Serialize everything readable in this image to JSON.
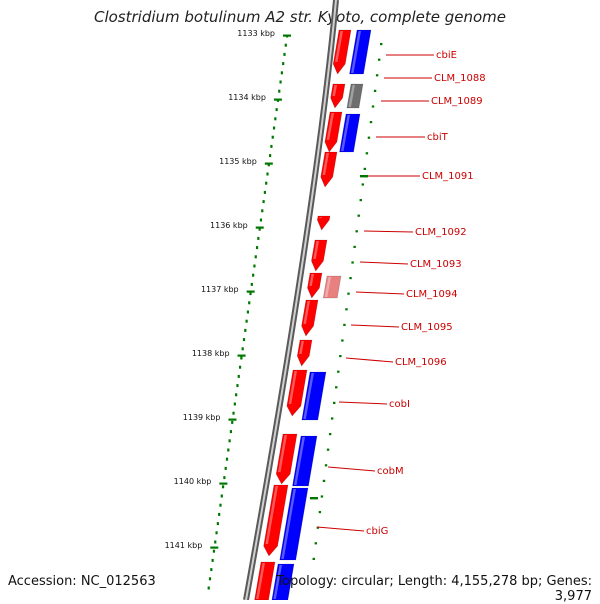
{
  "title": "Clostridium botulinum A2 str. Kyoto, complete genome",
  "accession_label": "Accession: NC_012563",
  "summary_label": "Topology: circular; Length: 4,155,278 bp; Genes: 3,977",
  "colors": {
    "forward_strand": "#ff0000",
    "reverse_strand": "#0000ff",
    "pseudo_gene": "#e88080",
    "other_feature": "#6e6e6e",
    "backbone": "#888888",
    "ruler": "#007700",
    "label": "#cc0000"
  },
  "ruler_ticks": [
    "1133 kbp",
    "1134 kbp",
    "1135 kbp",
    "1136 kbp",
    "1137 kbp",
    "1138 kbp",
    "1139 kbp",
    "1140 kbp",
    "1141 kbp"
  ],
  "gene_labels": [
    "cbiE",
    "CLM_1088",
    "CLM_1089",
    "cbiT",
    "CLM_1091",
    "CLM_1092",
    "CLM_1093",
    "CLM_1094",
    "CLM_1095",
    "CLM_1096",
    "cobI",
    "cobM",
    "cbiG"
  ]
}
